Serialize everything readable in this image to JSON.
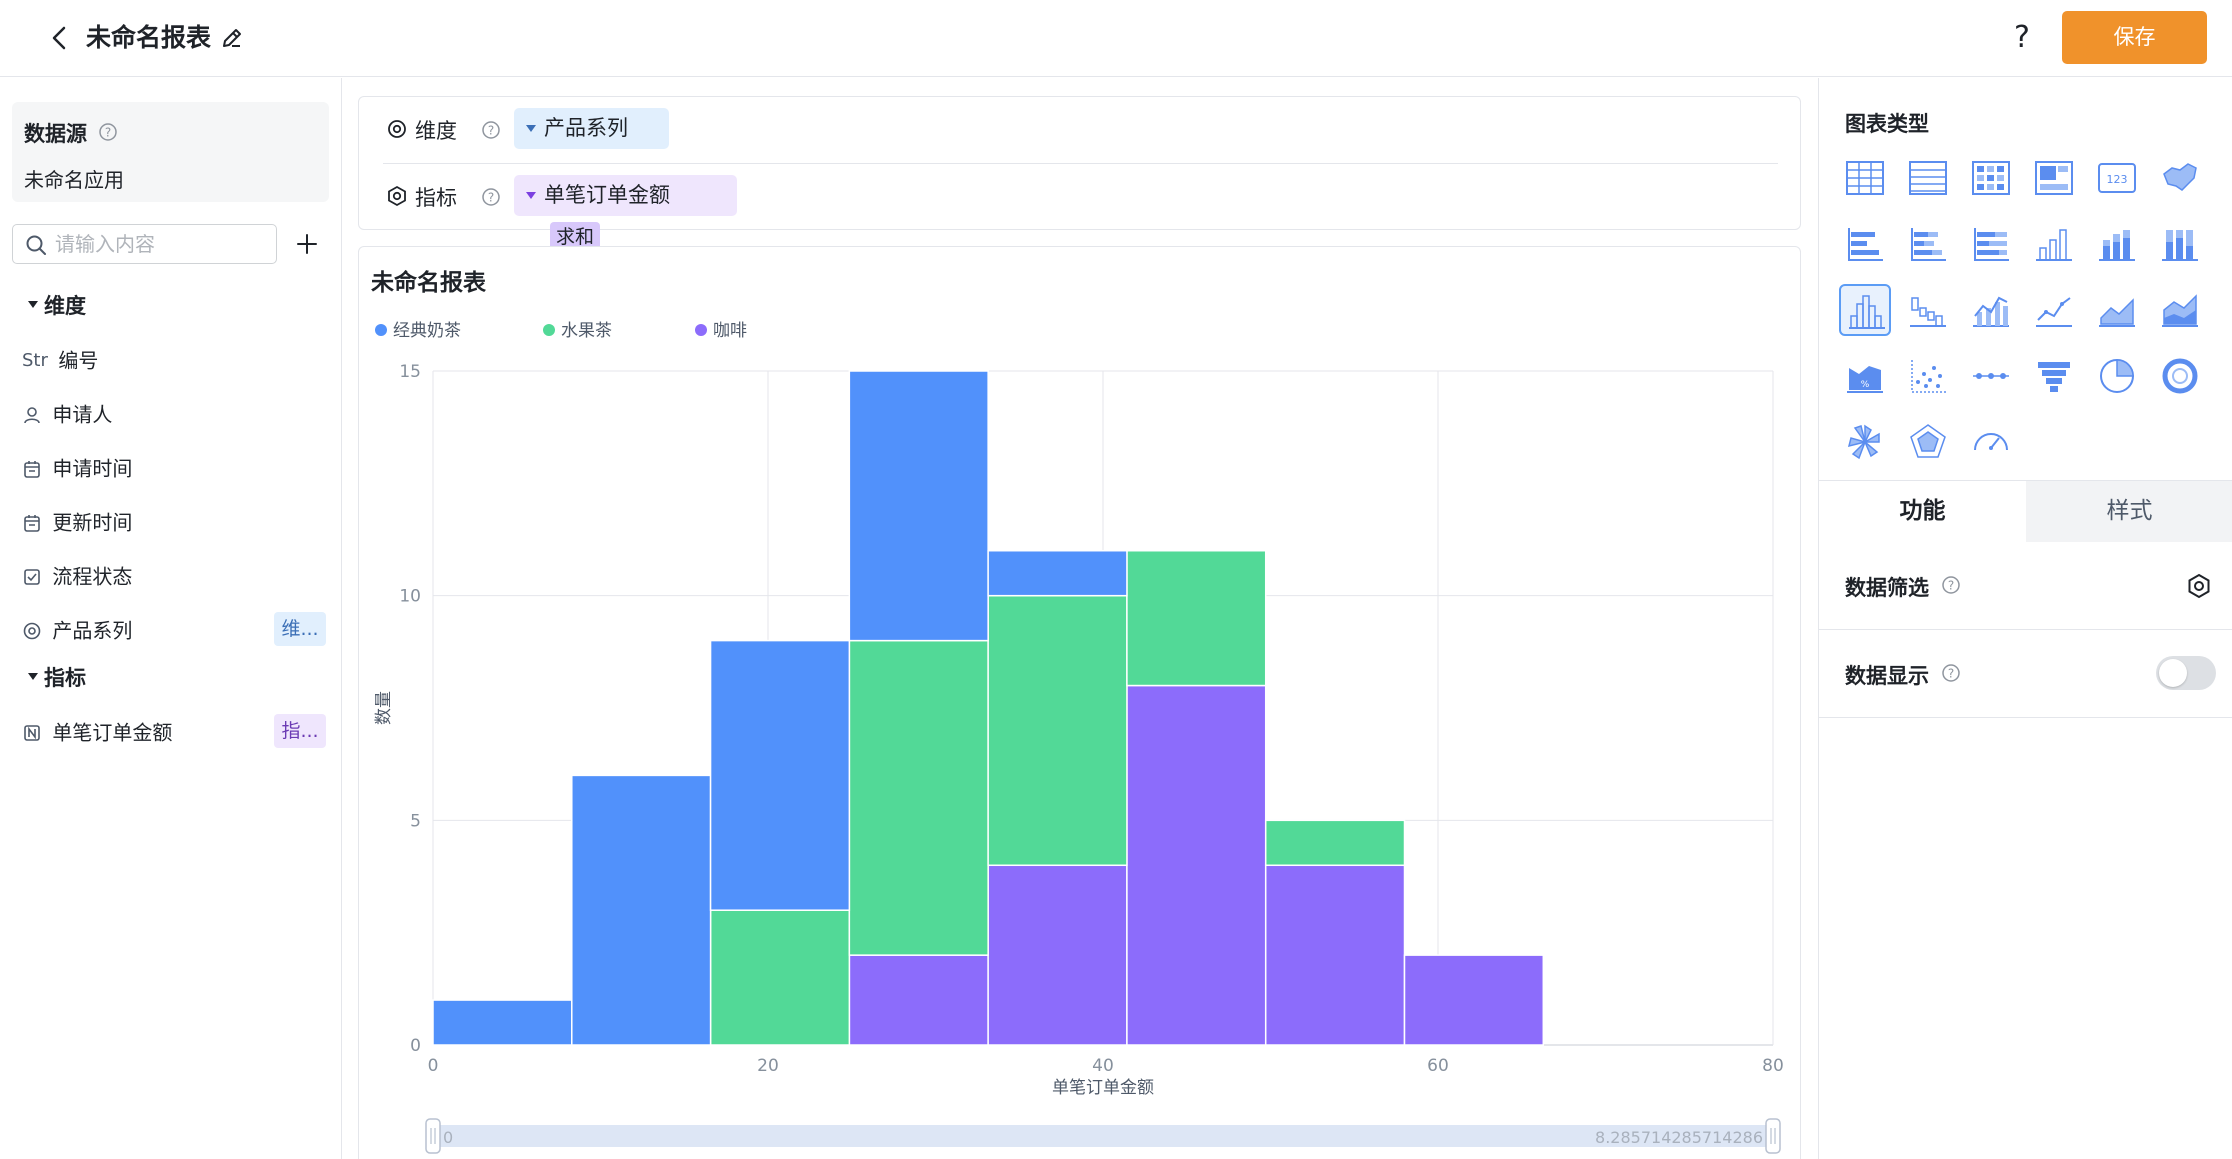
{
  "header": {
    "title": "未命名报表",
    "help_label": "?",
    "save_label": "保存"
  },
  "sidebar": {
    "datasource_title": "数据源",
    "datasource_name": "未命名应用",
    "search_placeholder": "请输入内容",
    "dimension_group": "维度",
    "dimension_fields": [
      {
        "icon": "string-type-icon",
        "icon_text": "Str",
        "label": "编号"
      },
      {
        "icon": "person-icon",
        "label": "申请人"
      },
      {
        "icon": "calendar-icon",
        "label": "申请时间"
      },
      {
        "icon": "calendar-icon",
        "label": "更新时间"
      },
      {
        "icon": "checkbox-icon",
        "label": "流程状态"
      },
      {
        "icon": "ring-icon",
        "label": "产品系列",
        "tag": "维..."
      }
    ],
    "metric_group": "指标",
    "metric_fields": [
      {
        "icon": "number-type-icon",
        "label": "单笔订单金额",
        "tag": "指..."
      }
    ]
  },
  "config": {
    "dimension_label": "维度",
    "dimension_value": "产品系列",
    "metric_label": "指标",
    "metric_value": "单笔订单金额",
    "metric_agg": "求和"
  },
  "chart_card": {
    "title": "未命名报表",
    "slider_start": "0",
    "slider_end": "8.285714285714286"
  },
  "chart_data": {
    "type": "bar",
    "subtype": "stacked-histogram",
    "title": "未命名报表",
    "xlabel": "单笔订单金额",
    "ylabel": "数量",
    "xlim": [
      0,
      80
    ],
    "ylim": [
      0,
      15
    ],
    "x_ticks": [
      0,
      20,
      40,
      60,
      80
    ],
    "y_ticks": [
      0,
      5,
      10,
      15
    ],
    "legend_position": "top-left",
    "grid": true,
    "bin_edges": [
      0,
      8.2857,
      16.5714,
      24.8571,
      33.1429,
      41.4286,
      49.7143,
      58.0,
      66.2857
    ],
    "series": [
      {
        "name": "咖啡",
        "color": "#8c6cfb",
        "values": [
          0,
          0,
          0,
          2,
          4,
          8,
          4,
          2
        ]
      },
      {
        "name": "水果茶",
        "color": "#52d997",
        "values": [
          0,
          0,
          3,
          7,
          6,
          3,
          1,
          0
        ]
      },
      {
        "name": "经典奶茶",
        "color": "#5191fb",
        "values": [
          1,
          6,
          6,
          6,
          1,
          0,
          0,
          0
        ]
      }
    ],
    "legend_order": [
      "经典奶茶",
      "水果茶",
      "咖啡"
    ]
  },
  "right_panel": {
    "chart_types_title": "图表类型",
    "chart_types": [
      "table-icon",
      "detail-table-icon",
      "pivot-table-icon",
      "card-icon",
      "indicator-card-icon",
      "map-icon",
      "bar-horizontal-icon",
      "stacked-bar-horizontal-icon",
      "percent-bar-horizontal-icon",
      "column-icon",
      "stacked-column-icon",
      "percent-column-icon",
      "histogram-icon",
      "waterfall-icon",
      "combo-icon",
      "line-icon",
      "area-icon",
      "stacked-area-icon",
      "percent-area-icon",
      "scatter-icon",
      "timeline-icon",
      "funnel-icon",
      "pie-icon",
      "donut-icon",
      "rose-icon",
      "radar-icon",
      "gauge-icon"
    ],
    "selected_chart_type": "histogram-icon",
    "tab_function": "功能",
    "tab_style": "样式",
    "data_filter_label": "数据筛选",
    "data_display_label": "数据显示"
  },
  "colors": {
    "accent": "#f0922b",
    "series_blue": "#5191fb",
    "series_green": "#52d997",
    "series_purple": "#8c6cfb"
  }
}
